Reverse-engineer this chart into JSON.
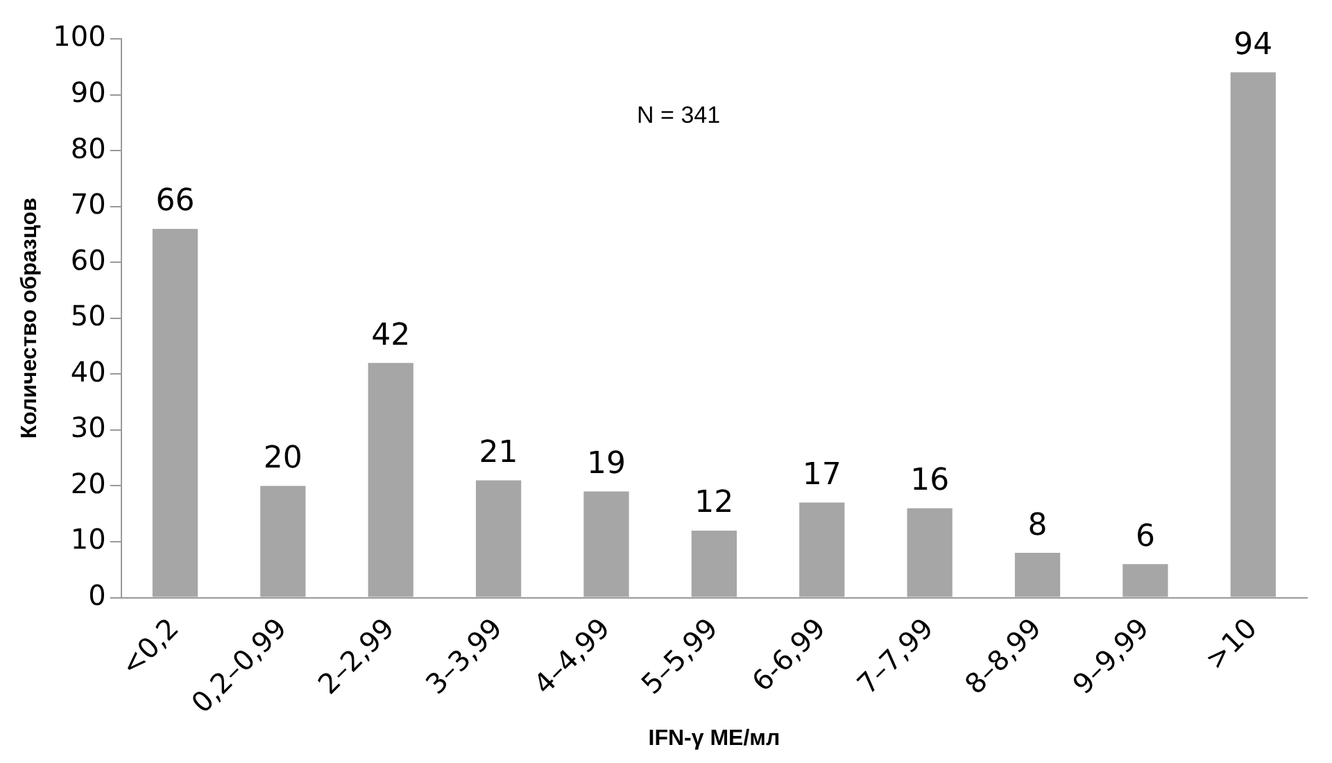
{
  "chart_data": {
    "type": "bar",
    "xlabel": "IFN-γ МЕ/мл",
    "ylabel": "Количество образцов",
    "categories": [
      "<0,2",
      "0,2–0,99",
      "2–2,99",
      "3–3,99",
      "4–4,99",
      "5–5,99",
      "6-6,99",
      "7–7,99",
      "8–8,99",
      "9–9,99",
      ">10"
    ],
    "values": [
      66,
      20,
      42,
      21,
      19,
      12,
      17,
      16,
      8,
      6,
      94
    ],
    "color": "#a6a6a6",
    "ylim": [
      0,
      100
    ],
    "yticks": [
      0,
      10,
      20,
      30,
      40,
      50,
      60,
      70,
      80,
      90,
      100
    ],
    "grid": false,
    "legend": false,
    "data_labels": true,
    "annotations": [
      "N = 341"
    ]
  }
}
